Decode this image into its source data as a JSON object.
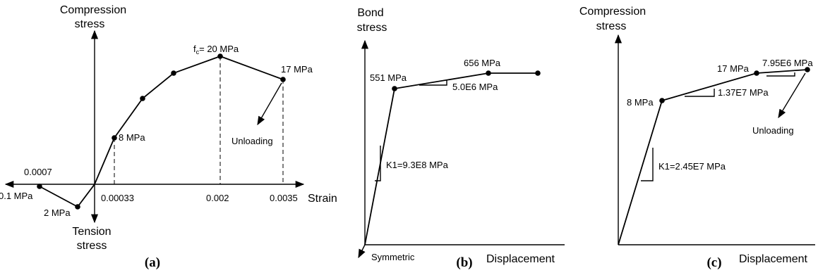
{
  "panel_a": {
    "y_axis_top": [
      "Compression",
      "stress"
    ],
    "y_axis_bottom": [
      "Tension",
      "stress"
    ],
    "x_axis_label": "Strain",
    "peak_label_prefix": "f",
    "peak_label_sub": "c",
    "peak_label_suffix": "= 20 MPa",
    "end_label": "17 MPa",
    "mid_label": "8 MPa",
    "unloading_label": "Unloading",
    "tension_strain_label": "0.0007",
    "tension_end_label": "0.1 MPa",
    "tension_peak_label": "2 MPa",
    "tick_labels": [
      "0.00033",
      "0.002",
      "0.0035"
    ],
    "caption": "(a)"
  },
  "panel_b": {
    "y_axis": [
      "Bond",
      "stress"
    ],
    "x_axis_label": "Displacement",
    "yield_label": "551 MPa",
    "end_label": "656 MPa",
    "slope_label": "5.0E6 MPa",
    "stiffness_label": "K1=9.3E8 MPa",
    "symmetric_label": "Symmetric",
    "caption": "(b)"
  },
  "panel_c": {
    "y_axis": [
      "Compression",
      "stress"
    ],
    "x_axis_label": "Displacement",
    "first_label": "8 MPa",
    "second_label": "17 MPa",
    "slope2_label": "1.37E7 MPa",
    "slope3_label": "7.95E6 MPa",
    "stiffness_label": "K1=2.45E7 MPa",
    "unloading_label": "Unloading",
    "caption": "(c)"
  }
}
